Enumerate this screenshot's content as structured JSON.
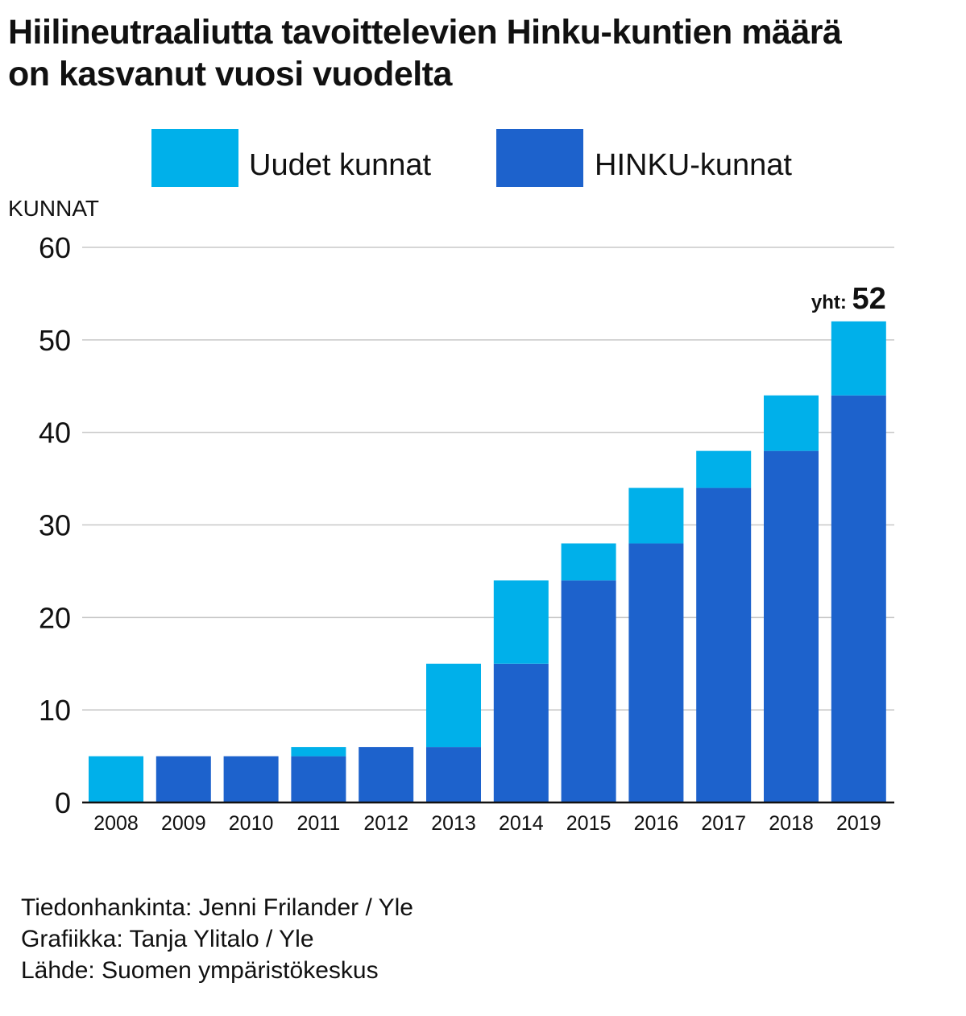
{
  "title_lines": [
    "Hiilineutraaliutta tavoittelevien Hinku-kuntien määrä",
    "on kasvanut vuosi vuodelta"
  ],
  "credits": [
    "Tiedonhankinta: Jenni Frilander / Yle",
    "Grafiikka: Tanja Ylitalo / Yle",
    "Lähde: Suomen ympäristökeskus"
  ],
  "chart_data": {
    "type": "bar",
    "stacked": true,
    "categories": [
      "2008",
      "2009",
      "2010",
      "2011",
      "2012",
      "2013",
      "2014",
      "2015",
      "2016",
      "2017",
      "2018",
      "2019"
    ],
    "series": [
      {
        "name": "HINKU-kunnat",
        "color": "#1d62cc",
        "values": [
          0,
          5,
          5,
          5,
          6,
          6,
          15,
          24,
          28,
          34,
          38,
          44
        ]
      },
      {
        "name": "Uudet kunnat",
        "color": "#00b0ea",
        "values": [
          5,
          0,
          0,
          1,
          0,
          9,
          9,
          4,
          6,
          4,
          6,
          8
        ]
      }
    ],
    "legend_order": [
      "Uudet kunnat",
      "HINKU-kunnat"
    ],
    "legend_position": "top",
    "ylabel": "KUNNAT",
    "ylim": [
      0,
      60
    ],
    "yticks": [
      0,
      10,
      20,
      30,
      40,
      50,
      60
    ],
    "grid": true,
    "annotation": {
      "category": "2019",
      "prefix": "yht:",
      "value": "52"
    }
  }
}
